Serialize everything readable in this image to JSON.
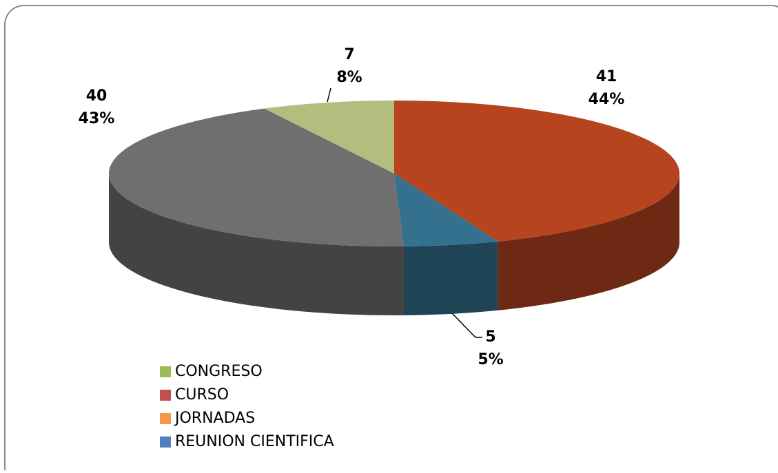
{
  "chart_data": {
    "type": "pie3d",
    "categories": [
      "CONGRESO",
      "CURSO",
      "JORNADAS",
      "REUNION CIENTIFICA",
      null
    ],
    "values": [
      7,
      41,
      0,
      5,
      40
    ],
    "percents": [
      {
        "value": 8,
        "label": "8%"
      },
      {
        "value": 44,
        "label": "44%"
      },
      null,
      {
        "value": 5,
        "label": "5%"
      },
      {
        "value": 43,
        "label": "43%"
      }
    ],
    "colors": [
      "#b3bd7e",
      "#b5441f",
      "#e59113",
      "#33718f",
      "#6f6f6f"
    ],
    "legend_colors": [
      "#9bbb59",
      "#c0504d",
      "#f79646",
      "#4f81bd"
    ],
    "legend": "bottom-left"
  }
}
